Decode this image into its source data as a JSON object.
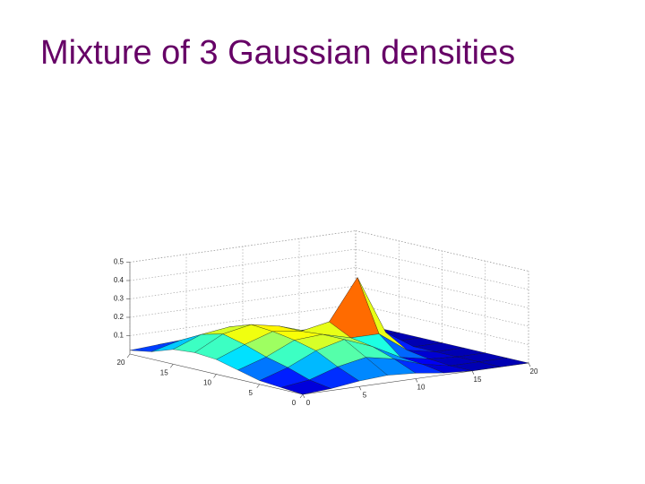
{
  "title": "Mixture of 3 Gaussian densities",
  "chart_data": {
    "type": "surface",
    "x": [
      0,
      2.5,
      5,
      7.5,
      10,
      12.5,
      15,
      17.5,
      20
    ],
    "y": [
      0,
      2.5,
      5,
      7.5,
      10,
      12.5,
      15,
      17.5,
      20
    ],
    "z": [
      [
        0,
        0.01,
        0.03,
        0.04,
        0.03,
        0.01,
        0,
        0,
        0
      ],
      [
        0.01,
        0.03,
        0.08,
        0.11,
        0.08,
        0.03,
        0,
        0,
        0
      ],
      [
        0.02,
        0.07,
        0.14,
        0.18,
        0.12,
        0.04,
        0.01,
        0,
        0
      ],
      [
        0.05,
        0.1,
        0.17,
        0.18,
        0.14,
        0.14,
        0.03,
        0,
        0
      ],
      [
        0.08,
        0.14,
        0.19,
        0.17,
        0.2,
        0.42,
        0.1,
        0,
        0
      ],
      [
        0.09,
        0.17,
        0.2,
        0.17,
        0.12,
        0.13,
        0.03,
        0,
        0
      ],
      [
        0.08,
        0.14,
        0.16,
        0.14,
        0.08,
        0.03,
        0.01,
        0,
        0
      ],
      [
        0.04,
        0.08,
        0.09,
        0.08,
        0.04,
        0.02,
        0,
        0,
        0
      ],
      [
        0.02,
        0.03,
        0.03,
        0.03,
        0.02,
        0.01,
        0,
        0,
        0
      ]
    ],
    "xlim": [
      0,
      20
    ],
    "xticks": [
      0,
      5,
      10,
      15,
      20
    ],
    "ylim": [
      0,
      20
    ],
    "yticks": [
      0,
      5,
      10,
      15,
      20
    ],
    "zlim": [
      0,
      0.5
    ],
    "zticks": [
      0.1,
      0.2,
      0.3,
      0.4,
      0.5
    ],
    "colormap": "jet",
    "grid": true
  }
}
